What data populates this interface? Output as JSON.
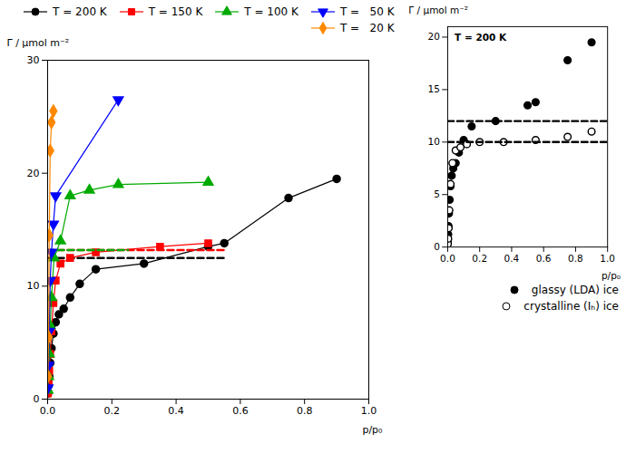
{
  "chart_data": [
    {
      "type": "line",
      "xlabel": "p/p₀",
      "ylabel": "Γ / μmol m⁻²",
      "xlim": [
        0.0,
        1.0
      ],
      "ylim": [
        0.0,
        30.0
      ],
      "xticks": [
        {
          "value": 0.0,
          "label": "0.0"
        },
        0.2,
        0.4,
        0.6,
        0.8,
        {
          "value": 1.0,
          "label": "1.0"
        }
      ],
      "yticks": [
        0,
        10,
        20,
        30
      ],
      "legend": "upper right",
      "series": [
        {
          "name": "T = 200 K",
          "color": "#000000",
          "marker": "circle",
          "line_style": "solid",
          "x": [
            0.001,
            0.003,
            0.005,
            0.008,
            0.012,
            0.018,
            0.025,
            0.035,
            0.05,
            0.07,
            0.1,
            0.15,
            0.3,
            0.5,
            0.55,
            0.75,
            0.9
          ],
          "values": [
            0.5,
            1.2,
            2.0,
            3.2,
            4.5,
            5.8,
            6.8,
            7.5,
            8.0,
            9.0,
            10.2,
            11.5,
            12.0,
            13.5,
            13.8,
            17.8,
            19.5
          ]
        },
        {
          "color": "#000000",
          "line_style": "dashed",
          "x": [
            0.0,
            0.55
          ],
          "values": [
            12.5,
            12.5
          ]
        },
        {
          "name": "T = 150 K",
          "color": "#ff0000",
          "marker": "square",
          "line_style": "solid",
          "x": [
            0.001,
            0.003,
            0.005,
            0.008,
            0.012,
            0.018,
            0.025,
            0.04,
            0.07,
            0.15,
            0.35,
            0.5
          ],
          "values": [
            0.5,
            1.5,
            2.5,
            4.0,
            6.0,
            8.5,
            10.5,
            12.0,
            12.5,
            13.0,
            13.5,
            13.8
          ]
        },
        {
          "color": "#ff0000",
          "line_style": "dashed",
          "x": [
            0.0,
            0.55
          ],
          "values": [
            13.2,
            13.2
          ]
        },
        {
          "name": "T = 100 K",
          "color": "#00aa00",
          "marker": "triangle-up",
          "line_style": "solid",
          "x": [
            0.001,
            0.003,
            0.005,
            0.008,
            0.012,
            0.02,
            0.04,
            0.07,
            0.13,
            0.22,
            0.5
          ],
          "values": [
            0.8,
            2.0,
            4.0,
            6.5,
            9.0,
            12.5,
            14.0,
            18.0,
            18.5,
            19.0,
            19.2
          ]
        },
        {
          "color": "#00aa00",
          "line_style": "dashed",
          "x": [
            0.0,
            0.25
          ],
          "values": [
            13.2,
            13.2
          ]
        },
        {
          "name": "T =   50 K",
          "color": "#0000ff",
          "marker": "triangle-down",
          "line_style": "solid",
          "x": [
            0.001,
            0.003,
            0.005,
            0.008,
            0.012,
            0.018,
            0.025,
            0.22
          ],
          "values": [
            1.0,
            3.0,
            6.0,
            10.5,
            13.0,
            15.5,
            18.0,
            26.5
          ]
        },
        {
          "name": "T =   20 K",
          "color": "#ff8800",
          "marker": "diamond",
          "line_style": "solid",
          "x": [
            0.001,
            0.003,
            0.005,
            0.008,
            0.012,
            0.018
          ],
          "values": [
            2.0,
            5.5,
            14.5,
            22.0,
            24.5,
            25.5
          ]
        }
      ]
    },
    {
      "type": "line",
      "xlabel": "p/p₀",
      "ylabel": "Γ / μmol m⁻²",
      "annotation": "T = 200 K",
      "xlim": [
        0.0,
        1.0
      ],
      "ylim": [
        0.0,
        21.0
      ],
      "xticks": [
        {
          "value": 0.0,
          "label": "0.0"
        },
        0.2,
        0.4,
        0.6,
        0.8,
        {
          "value": 1.0,
          "label": "1.0"
        }
      ],
      "yticks": [
        0,
        5,
        10,
        15,
        20
      ],
      "legend": "lower right",
      "series": [
        {
          "name": "glassy (LDA) ice",
          "color": "#000000",
          "marker": "circle",
          "line_style": "none",
          "x": [
            0.001,
            0.003,
            0.005,
            0.008,
            0.012,
            0.018,
            0.025,
            0.035,
            0.05,
            0.07,
            0.1,
            0.15,
            0.3,
            0.5,
            0.55,
            0.75,
            0.9
          ],
          "values": [
            0.5,
            1.2,
            2.0,
            3.2,
            4.5,
            5.8,
            6.8,
            7.5,
            8.0,
            9.0,
            10.2,
            11.5,
            12.0,
            13.5,
            13.8,
            17.8,
            19.5
          ]
        },
        {
          "color": "#000000",
          "line_style": "dashed",
          "x": [
            0.0,
            1.0
          ],
          "values": [
            12.0,
            12.0
          ]
        },
        {
          "name": "crystalline (Iₕ) ice",
          "color": "#000000",
          "marker": "circle-open",
          "line_style": "none",
          "x": [
            0.001,
            0.003,
            0.006,
            0.01,
            0.018,
            0.03,
            0.05,
            0.08,
            0.12,
            0.2,
            0.35,
            0.55,
            0.75,
            0.9
          ],
          "values": [
            0.3,
            0.8,
            1.8,
            3.5,
            6.0,
            8.0,
            9.2,
            9.5,
            9.8,
            10.0,
            10.0,
            10.2,
            10.5,
            11.0
          ]
        },
        {
          "color": "#000000",
          "line_style": "dashed",
          "x": [
            0.0,
            1.0
          ],
          "values": [
            10.0,
            10.0
          ]
        }
      ]
    }
  ]
}
